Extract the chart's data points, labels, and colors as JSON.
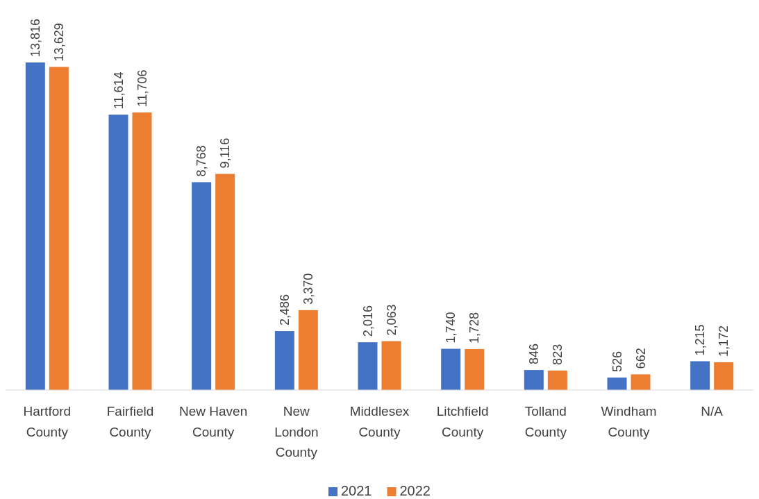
{
  "chart_data": {
    "type": "bar",
    "categories": [
      "Hartford County",
      "Fairfield County",
      "New Haven County",
      "New London County",
      "Middlesex County",
      "Litchfield County",
      "Tolland County",
      "Windham County",
      "N/A"
    ],
    "series": [
      {
        "name": "2021",
        "color": "#4472c4",
        "values": [
          13816,
          11614,
          8768,
          2486,
          2016,
          1740,
          846,
          526,
          1215
        ],
        "value_labels": [
          "13,816",
          "11,614",
          "8,768",
          "2,486",
          "2,016",
          "1,740",
          "846",
          "526",
          "1,215"
        ]
      },
      {
        "name": "2022",
        "color": "#ed7d31",
        "values": [
          13629,
          11706,
          9116,
          3370,
          2063,
          1728,
          823,
          662,
          1172
        ],
        "value_labels": [
          "13,629",
          "11,706",
          "9,116",
          "3,370",
          "2,063",
          "1,728",
          "823",
          "662",
          "1,172"
        ]
      }
    ],
    "legend": "bottom"
  }
}
